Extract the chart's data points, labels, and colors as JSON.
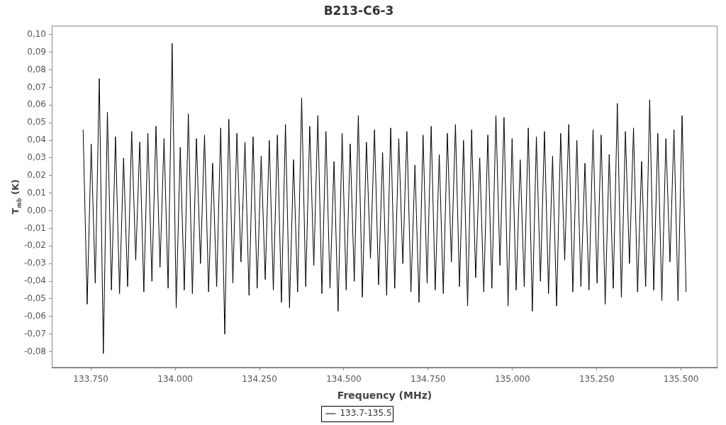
{
  "chart_data": {
    "type": "line",
    "title": "B213-C6-3",
    "xlabel": "Frequency (MHz)",
    "ylabel": "T$_{mb}$ (K)",
    "xlim": [
      133634,
      135608
    ],
    "xticks": [
      {
        "value": 133750,
        "label": "133.750"
      },
      {
        "value": 134000,
        "label": "134.000"
      },
      {
        "value": 134250,
        "label": "134.250"
      },
      {
        "value": 134500,
        "label": "134.500"
      },
      {
        "value": 134750,
        "label": "134.750"
      },
      {
        "value": 135000,
        "label": "135.000"
      },
      {
        "value": 135250,
        "label": "135.250"
      },
      {
        "value": 135500,
        "label": "135.500"
      }
    ],
    "ylim": [
      -0.089,
      0.105
    ],
    "yticks": [
      {
        "value": -0.08,
        "label": "-0,08"
      },
      {
        "value": -0.07,
        "label": "-0,07"
      },
      {
        "value": -0.06,
        "label": "-0,06"
      },
      {
        "value": -0.05,
        "label": "-0,05"
      },
      {
        "value": -0.04,
        "label": "-0,04"
      },
      {
        "value": -0.03,
        "label": "-0,03"
      },
      {
        "value": -0.02,
        "label": "-0,02"
      },
      {
        "value": -0.01,
        "label": "-0,01"
      },
      {
        "value": 0,
        "label": "0,00"
      },
      {
        "value": 0.01,
        "label": "0,01"
      },
      {
        "value": 0.02,
        "label": "0,02"
      },
      {
        "value": 0.03,
        "label": "0,03"
      },
      {
        "value": 0.04,
        "label": "0,04"
      },
      {
        "value": 0.05,
        "label": "0,05"
      },
      {
        "value": 0.06,
        "label": "0,06"
      },
      {
        "value": 0.07,
        "label": "0,07"
      },
      {
        "value": 0.08,
        "label": "0,08"
      },
      {
        "value": 0.09,
        "label": "0,09"
      },
      {
        "value": 0.1,
        "label": "0,10"
      }
    ],
    "grid": false,
    "legend": "bottom",
    "x": [
      133727,
      133739,
      133751,
      133763,
      133775,
      133787,
      133799,
      133811,
      133823,
      133835,
      133847,
      133859,
      133871,
      133883,
      133895,
      133907,
      133919,
      133931,
      133943,
      133955,
      133967,
      133979,
      133991,
      134003,
      134015,
      134027,
      134039,
      134051,
      134063,
      134075,
      134087,
      134099,
      134111,
      134123,
      134135,
      134147,
      134159,
      134171,
      134183,
      134195,
      134207,
      134219,
      134231,
      134243,
      134255,
      134267,
      134279,
      134291,
      134303,
      134315,
      134327,
      134339,
      134351,
      134363,
      134375,
      134387,
      134399,
      134411,
      134423,
      134435,
      134447,
      134459,
      134471,
      134483,
      134495,
      134507,
      134519,
      134531,
      134543,
      134555,
      134567,
      134579,
      134591,
      134603,
      134615,
      134627,
      134639,
      134651,
      134663,
      134675,
      134687,
      134699,
      134711,
      134723,
      134735,
      134747,
      134759,
      134771,
      134783,
      134795,
      134807,
      134819,
      134831,
      134843,
      134855,
      134867,
      134879,
      134891,
      134903,
      134915,
      134927,
      134939,
      134951,
      134963,
      134975,
      134987,
      134999,
      135011,
      135023,
      135035,
      135047,
      135059,
      135071,
      135083,
      135095,
      135107,
      135119,
      135131,
      135143,
      135155,
      135167,
      135179,
      135191,
      135203,
      135215,
      135227,
      135239,
      135251,
      135263,
      135275,
      135287,
      135299,
      135311,
      135323,
      135335,
      135347,
      135359,
      135371,
      135383,
      135395,
      135407,
      135419,
      135431,
      135443,
      135455,
      135467,
      135479,
      135491,
      135503,
      135515
    ],
    "series": [
      {
        "name": "133.7-135.5",
        "color": "#000000",
        "values": [
          0.046,
          -0.053,
          0.038,
          -0.041,
          0.075,
          -0.081,
          0.056,
          -0.045,
          0.042,
          -0.047,
          0.03,
          -0.043,
          0.045,
          -0.028,
          0.039,
          -0.046,
          0.044,
          -0.04,
          0.048,
          -0.032,
          0.041,
          -0.044,
          0.095,
          -0.055,
          0.036,
          -0.045,
          0.055,
          -0.047,
          0.041,
          -0.03,
          0.043,
          -0.046,
          0.027,
          -0.043,
          0.047,
          -0.07,
          0.052,
          -0.041,
          0.044,
          -0.029,
          0.039,
          -0.048,
          0.042,
          -0.044,
          0.031,
          -0.039,
          0.04,
          -0.045,
          0.043,
          -0.052,
          0.049,
          -0.055,
          0.029,
          -0.046,
          0.064,
          -0.043,
          0.048,
          -0.031,
          0.054,
          -0.047,
          0.045,
          -0.044,
          0.028,
          -0.057,
          0.044,
          -0.045,
          0.038,
          -0.04,
          0.054,
          -0.049,
          0.039,
          -0.027,
          0.046,
          -0.042,
          0.033,
          -0.048,
          0.047,
          -0.044,
          0.041,
          -0.03,
          0.045,
          -0.046,
          0.026,
          -0.052,
          0.043,
          -0.041,
          0.048,
          -0.045,
          0.032,
          -0.047,
          0.044,
          -0.029,
          0.049,
          -0.043,
          0.04,
          -0.054,
          0.046,
          -0.038,
          0.03,
          -0.046,
          0.043,
          -0.044,
          0.054,
          -0.031,
          0.053,
          -0.054,
          0.041,
          -0.045,
          0.029,
          -0.043,
          0.047,
          -0.057,
          0.042,
          -0.04,
          0.045,
          -0.047,
          0.031,
          -0.054,
          0.044,
          -0.028,
          0.049,
          -0.046,
          0.04,
          -0.043,
          0.027,
          -0.045,
          0.046,
          -0.041,
          0.043,
          -0.053,
          0.032,
          -0.044,
          0.061,
          -0.049,
          0.045,
          -0.03,
          0.047,
          -0.046,
          0.028,
          -0.043,
          0.063,
          -0.045,
          0.044,
          -0.051,
          0.041,
          -0.029,
          0.046,
          -0.051,
          0.054,
          -0.046
        ]
      }
    ]
  }
}
